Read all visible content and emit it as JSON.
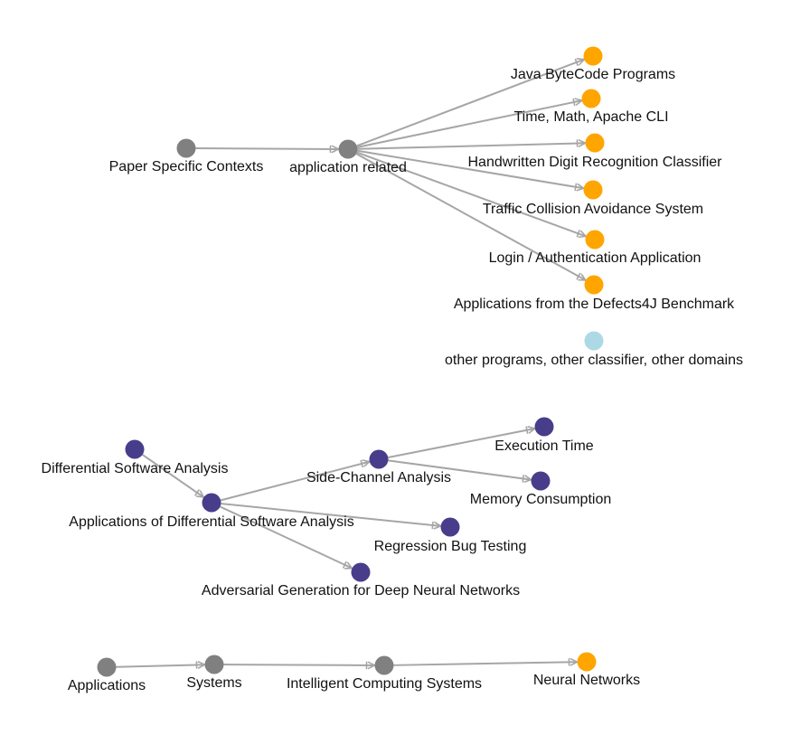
{
  "colors": {
    "gray": "#808080",
    "orange": "#ffa500",
    "purple": "#483d8b",
    "lightblue": "#add8e6",
    "edge": "#a6a6a6"
  },
  "nodes": {
    "paper_specific_contexts": {
      "label": "Paper Specific Contexts",
      "color": "gray"
    },
    "application_related": {
      "label": "application related",
      "color": "gray"
    },
    "java_bytecode_programs": {
      "label": "Java ByteCode Programs",
      "color": "orange"
    },
    "time_math_apache_cli": {
      "label": "Time, Math, Apache CLI",
      "color": "orange"
    },
    "handwritten_digit_recognition": {
      "label": "Handwritten Digit Recognition Classifier",
      "color": "orange"
    },
    "traffic_collision_avoidance": {
      "label": "Traffic Collision Avoidance System",
      "color": "orange"
    },
    "login_authentication": {
      "label": "Login / Authentication Application",
      "color": "orange"
    },
    "defects4j_applications": {
      "label": "Applications from the Defects4J Benchmark",
      "color": "orange"
    },
    "other_programs": {
      "label": "other programs, other classifier, other domains",
      "color": "lightblue"
    },
    "differential_software_analysis": {
      "label": "Differential Software Analysis",
      "color": "purple"
    },
    "applications_of_dsa": {
      "label": "Applications of Differential Software Analysis",
      "color": "purple"
    },
    "side_channel_analysis": {
      "label": "Side-Channel Analysis",
      "color": "purple"
    },
    "execution_time": {
      "label": "Execution Time",
      "color": "purple"
    },
    "memory_consumption": {
      "label": "Memory Consumption",
      "color": "purple"
    },
    "regression_bug_testing": {
      "label": "Regression Bug Testing",
      "color": "purple"
    },
    "adversarial_generation_dnn": {
      "label": "Adversarial Generation for Deep Neural Networks",
      "color": "purple"
    },
    "applications": {
      "label": "Applications",
      "color": "gray"
    },
    "systems": {
      "label": "Systems",
      "color": "gray"
    },
    "intelligent_computing_systems": {
      "label": "Intelligent Computing Systems",
      "color": "gray"
    },
    "neural_networks": {
      "label": "Neural Networks",
      "color": "orange"
    }
  },
  "edges": [
    {
      "from": "paper_specific_contexts",
      "to": "application_related"
    },
    {
      "from": "application_related",
      "to": "java_bytecode_programs"
    },
    {
      "from": "application_related",
      "to": "time_math_apache_cli"
    },
    {
      "from": "application_related",
      "to": "handwritten_digit_recognition"
    },
    {
      "from": "application_related",
      "to": "traffic_collision_avoidance"
    },
    {
      "from": "application_related",
      "to": "login_authentication"
    },
    {
      "from": "application_related",
      "to": "defects4j_applications"
    },
    {
      "from": "differential_software_analysis",
      "to": "applications_of_dsa"
    },
    {
      "from": "applications_of_dsa",
      "to": "side_channel_analysis"
    },
    {
      "from": "applications_of_dsa",
      "to": "regression_bug_testing"
    },
    {
      "from": "applications_of_dsa",
      "to": "adversarial_generation_dnn"
    },
    {
      "from": "side_channel_analysis",
      "to": "execution_time"
    },
    {
      "from": "side_channel_analysis",
      "to": "memory_consumption"
    },
    {
      "from": "applications",
      "to": "systems"
    },
    {
      "from": "systems",
      "to": "intelligent_computing_systems"
    },
    {
      "from": "intelligent_computing_systems",
      "to": "neural_networks"
    }
  ]
}
